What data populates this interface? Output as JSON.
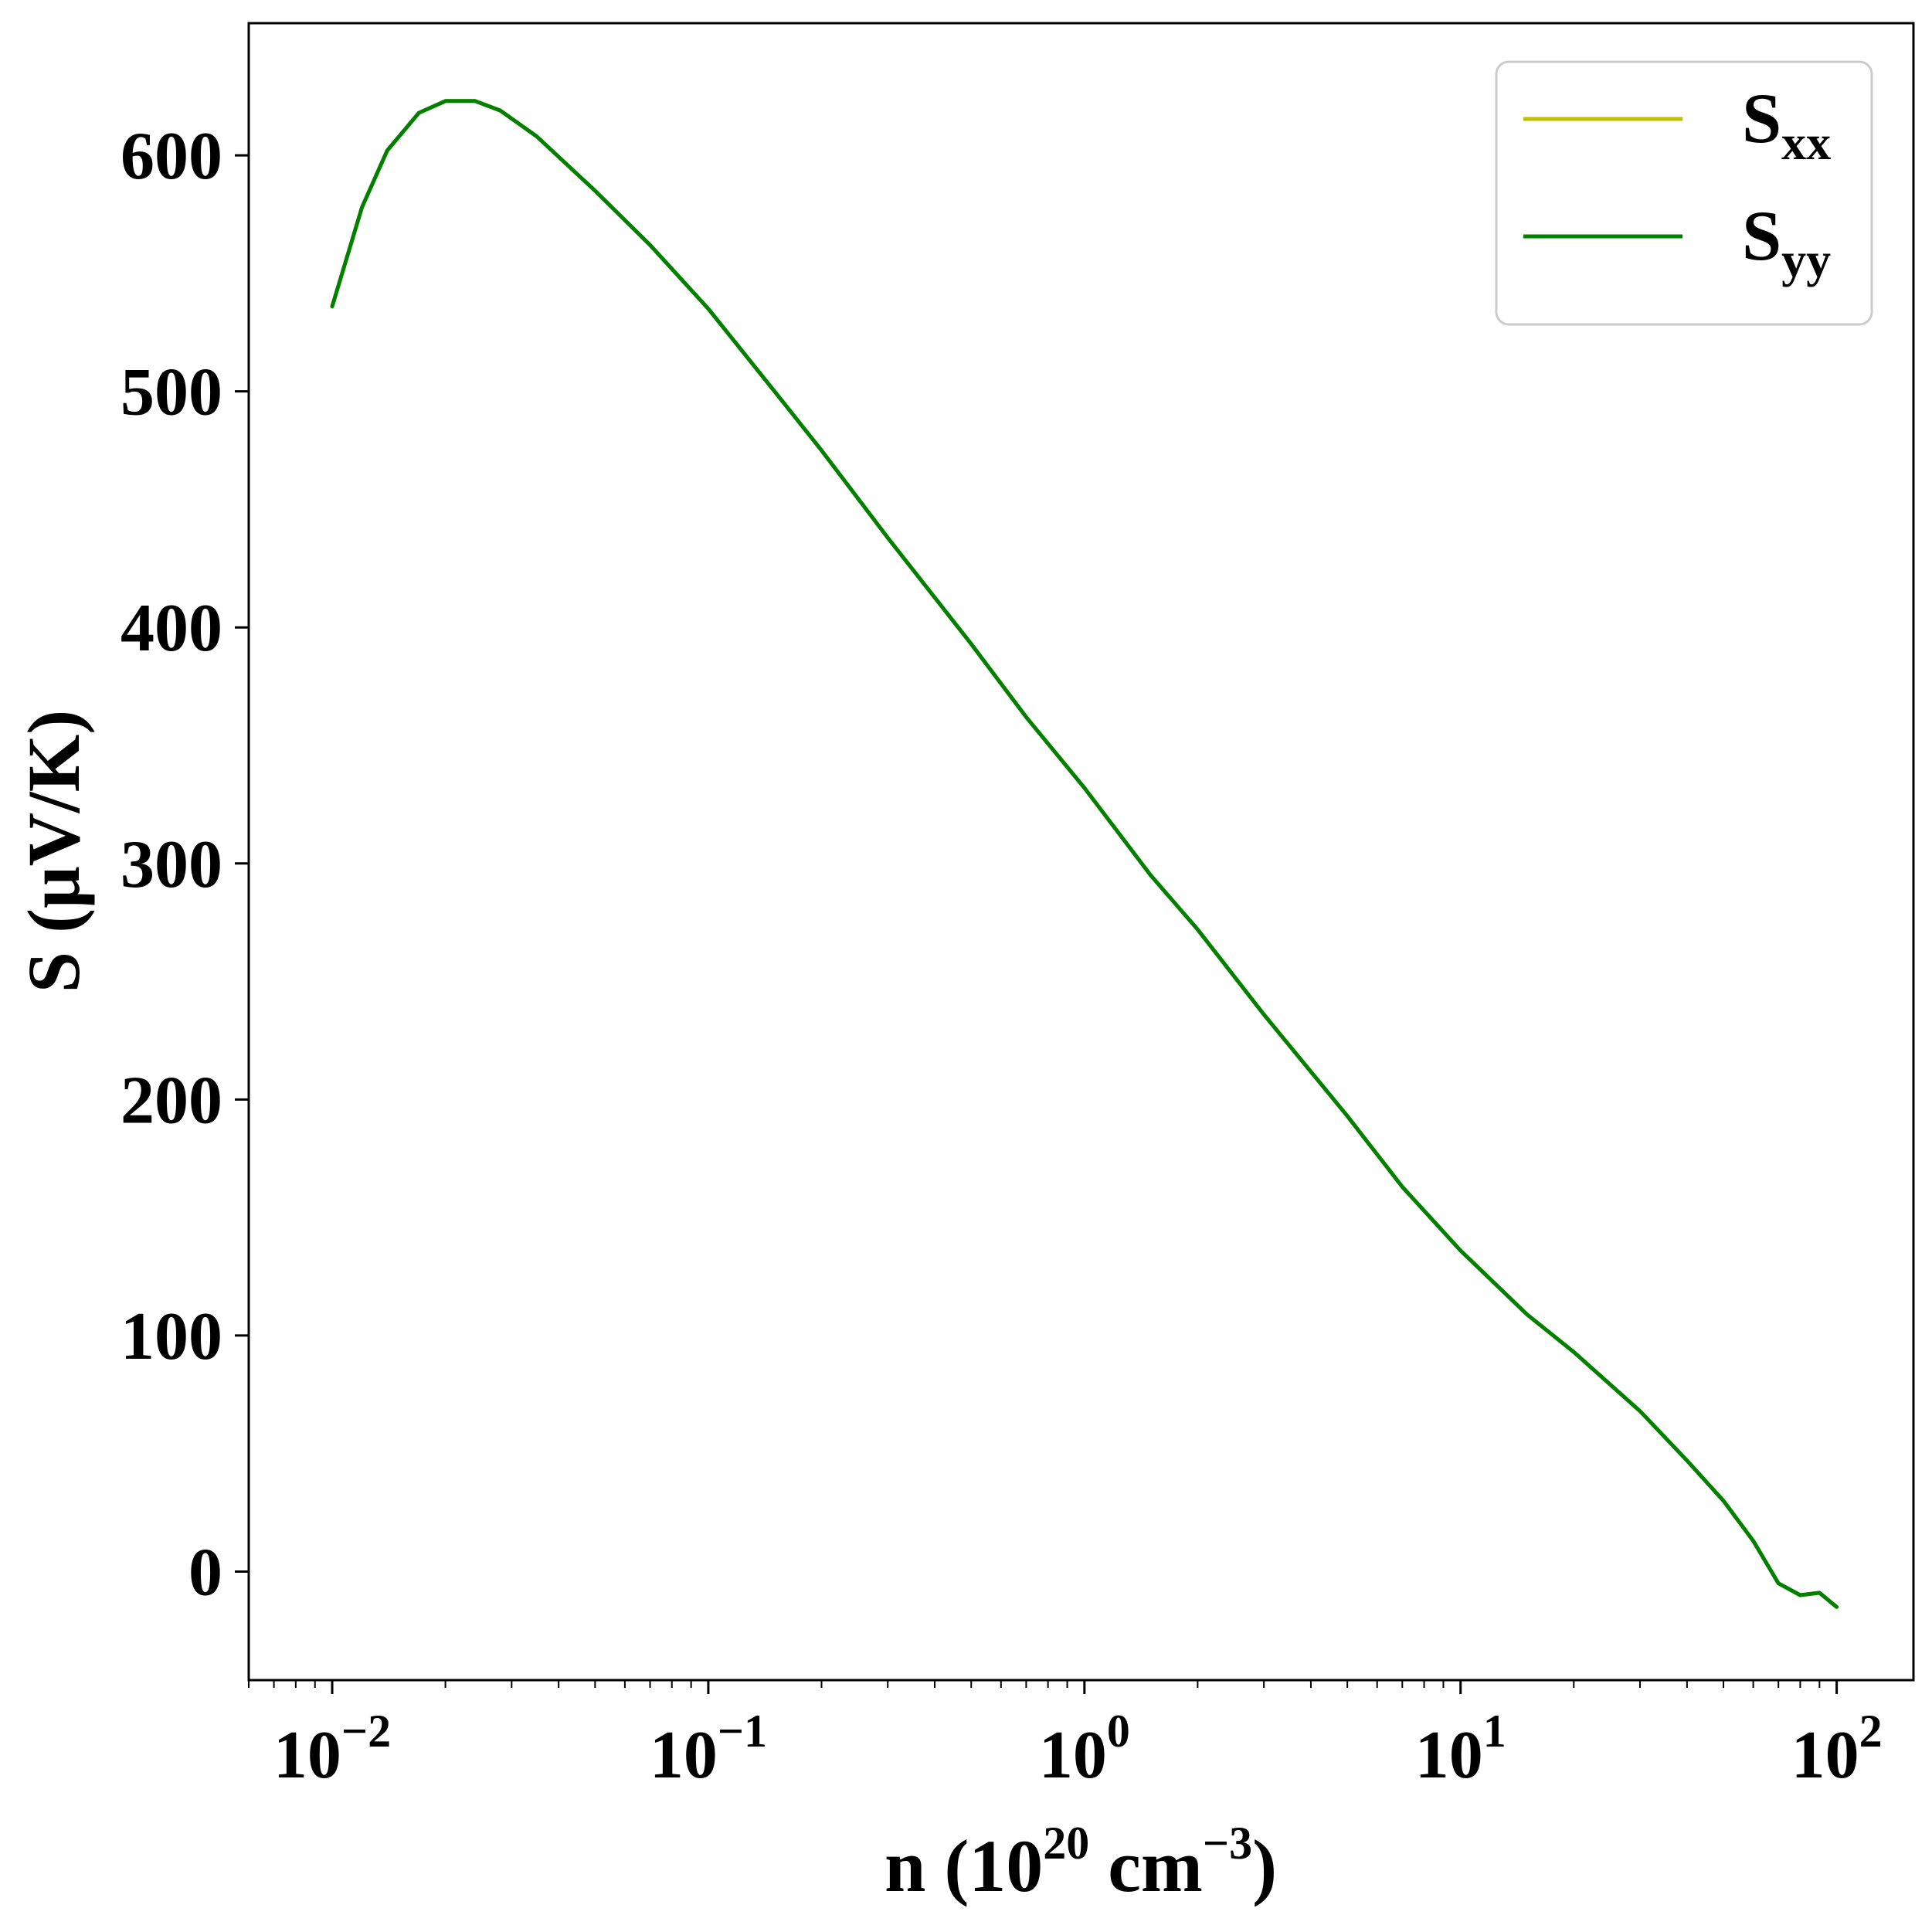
{
  "chart_data": {
    "type": "line",
    "xscale": "log",
    "xlim": [
      0.006,
      160
    ],
    "ylim": [
      -46,
      656
    ],
    "xlabel": {
      "base": "n (10",
      "exp1": "20",
      "mid": " cm",
      "exp2": "−3",
      "tail": ")"
    },
    "ylabel": "S (μV/K)",
    "x_ticks": [
      {
        "value": 0.01,
        "base": "10",
        "exp": "−2"
      },
      {
        "value": 0.1,
        "base": "10",
        "exp": "−1"
      },
      {
        "value": 1,
        "base": "10",
        "exp": "0"
      },
      {
        "value": 10,
        "base": "10",
        "exp": "1"
      },
      {
        "value": 100,
        "base": "10",
        "exp": "2"
      }
    ],
    "y_ticks": [
      {
        "value": 0,
        "label": "0"
      },
      {
        "value": 100,
        "label": "100"
      },
      {
        "value": 200,
        "label": "200"
      },
      {
        "value": 300,
        "label": "300"
      },
      {
        "value": 400,
        "label": "400"
      },
      {
        "value": 500,
        "label": "500"
      },
      {
        "value": 600,
        "label": "600"
      }
    ],
    "grid": false,
    "legend": {
      "position": "top-right"
    },
    "series": [
      {
        "name": "S",
        "subscript": "xx",
        "color": "#bfbf00",
        "x": [
          0.01,
          0.012,
          0.014,
          0.017,
          0.02,
          0.024,
          0.028,
          0.035,
          0.05,
          0.07,
          0.1,
          0.15,
          0.2,
          0.3,
          0.5,
          0.7,
          1,
          1.5,
          2,
          3,
          5,
          7,
          10,
          15,
          20,
          30,
          40,
          50,
          60,
          70,
          80,
          90,
          100
        ],
        "y": [
          536,
          578,
          602,
          618,
          623,
          623,
          619,
          608,
          585,
          562,
          535,
          500,
          475,
          438,
          393,
          362,
          332,
          295,
          272,
          236,
          193,
          163,
          136,
          109,
          93,
          68,
          47,
          30,
          13,
          -5,
          -10,
          -9,
          -15
        ]
      },
      {
        "name": "S",
        "subscript": "yy",
        "color": "#008000",
        "x": [
          0.01,
          0.012,
          0.014,
          0.017,
          0.02,
          0.024,
          0.028,
          0.035,
          0.05,
          0.07,
          0.1,
          0.15,
          0.2,
          0.3,
          0.5,
          0.7,
          1,
          1.5,
          2,
          3,
          5,
          7,
          10,
          15,
          20,
          30,
          40,
          50,
          60,
          70,
          80,
          90,
          100
        ],
        "y": [
          536,
          578,
          602,
          618,
          623,
          623,
          619,
          608,
          585,
          562,
          535,
          500,
          475,
          438,
          393,
          362,
          332,
          295,
          272,
          236,
          193,
          163,
          136,
          109,
          93,
          68,
          47,
          30,
          13,
          -5,
          -10,
          -9,
          -15
        ]
      }
    ]
  }
}
